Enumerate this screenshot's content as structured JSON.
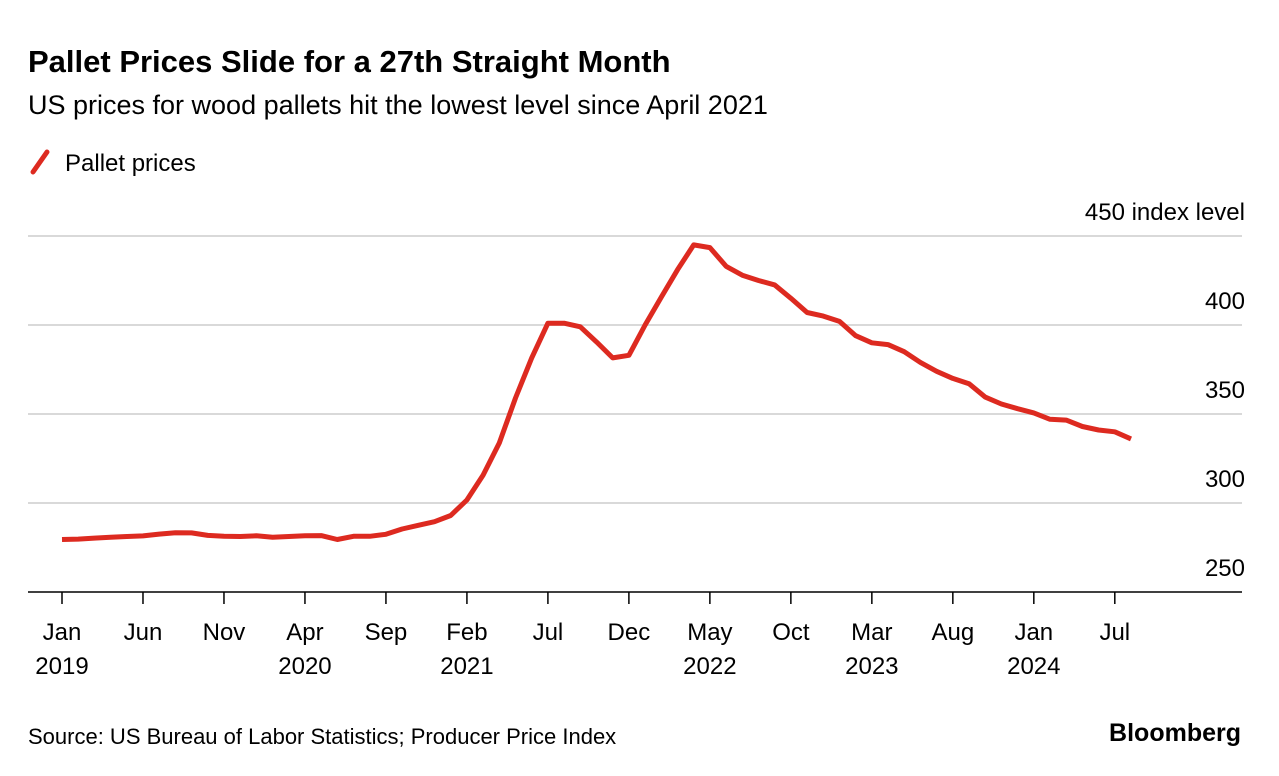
{
  "chart_data": {
    "type": "line",
    "title": "Pallet Prices Slide for a 27th Straight Month",
    "subtitle": "US prices for wood pallets hit the lowest level since April 2021",
    "source": "Source: US Bureau of Labor Statistics; Producer Price Index",
    "brand": "Bloomberg",
    "ylabel_unit": "index level",
    "ylim": [
      250,
      450
    ],
    "yticks": [
      250,
      300,
      350,
      400,
      450
    ],
    "ytick_labels": [
      "250",
      "300",
      "350",
      "400",
      "450 index level"
    ],
    "grid": true,
    "legend_placement": "top-left",
    "x_start": "2019-01",
    "x_end": "2024-07",
    "xtick_labels": [
      {
        "month": "Jan",
        "year": "2019"
      },
      {
        "month": "Jun",
        "year": ""
      },
      {
        "month": "Nov",
        "year": ""
      },
      {
        "month": "Apr",
        "year": "2020"
      },
      {
        "month": "Sep",
        "year": ""
      },
      {
        "month": "Feb",
        "year": "2021"
      },
      {
        "month": "Jul",
        "year": ""
      },
      {
        "month": "Dec",
        "year": ""
      },
      {
        "month": "May",
        "year": "2022"
      },
      {
        "month": "Oct",
        "year": ""
      },
      {
        "month": "Mar",
        "year": "2023"
      },
      {
        "month": "Aug",
        "year": ""
      },
      {
        "month": "Jan",
        "year": "2024"
      },
      {
        "month": "Jul",
        "year": ""
      }
    ],
    "series": [
      {
        "name": "Pallet prices",
        "color": "#dd2a20",
        "values": [
          279.5,
          279.7,
          280.3,
          280.8,
          281.2,
          281.5,
          282.5,
          283.3,
          283.2,
          281.8,
          281.3,
          281.2,
          281.6,
          280.8,
          281.2,
          281.6,
          281.7,
          279.5,
          281.3,
          281.3,
          282.4,
          285.4,
          287.5,
          289.5,
          293.0,
          301.7,
          315.7,
          333.7,
          359.0,
          381.5,
          401.0,
          401.0,
          399.0,
          390.5,
          381.5,
          383.0,
          400.0,
          415.7,
          431.0,
          445.0,
          443.5,
          433.0,
          428.0,
          425.0,
          422.5,
          415.0,
          407.0,
          405.0,
          402.0,
          394.0,
          390.0,
          389.0,
          385.0,
          379.0,
          374.0,
          370.0,
          367.0,
          359.5,
          355.6,
          353.0,
          350.6,
          347.0,
          346.6,
          343.0,
          341.0,
          340.0,
          336.0
        ]
      }
    ]
  }
}
